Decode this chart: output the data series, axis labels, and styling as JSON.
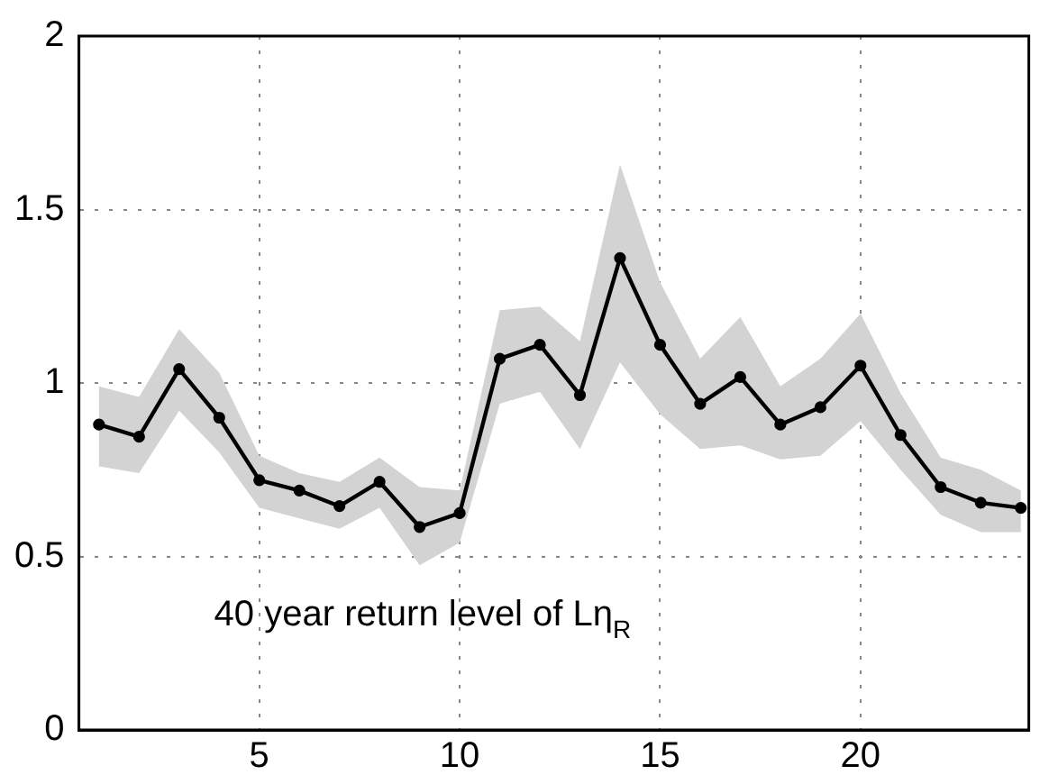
{
  "chart_data": {
    "type": "line",
    "x": [
      1,
      2,
      3,
      4,
      5,
      6,
      7,
      8,
      9,
      10,
      11,
      12,
      13,
      14,
      15,
      16,
      17,
      18,
      19,
      20,
      21,
      22,
      23,
      24
    ],
    "series": [
      {
        "color": "#000000",
        "values": [
          0.88,
          0.845,
          1.04,
          0.9,
          0.72,
          0.69,
          0.645,
          0.715,
          0.585,
          0.625,
          1.07,
          1.11,
          0.965,
          1.36,
          1.11,
          0.94,
          1.017,
          0.88,
          0.93,
          1.05,
          0.85,
          0.7,
          0.655,
          0.64
        ],
        "upper": [
          0.99,
          0.96,
          1.155,
          1.03,
          0.79,
          0.74,
          0.715,
          0.785,
          0.7,
          0.69,
          1.21,
          1.22,
          1.12,
          1.63,
          1.29,
          1.07,
          1.19,
          0.99,
          1.07,
          1.2,
          0.97,
          0.785,
          0.75,
          0.69
        ],
        "lower": [
          0.76,
          0.74,
          0.92,
          0.8,
          0.64,
          0.61,
          0.58,
          0.64,
          0.475,
          0.54,
          0.94,
          0.975,
          0.81,
          1.06,
          0.91,
          0.81,
          0.82,
          0.78,
          0.79,
          0.89,
          0.75,
          0.62,
          0.57,
          0.57
        ]
      }
    ],
    "xlim": [
      0.5,
      24.2
    ],
    "xticks": [
      5,
      10,
      15,
      20
    ],
    "ylim": [
      0,
      2
    ],
    "yticks": [
      0,
      0.5,
      1,
      1.5,
      2
    ],
    "grid": true,
    "marker": "circle",
    "line_style": "solid",
    "legend": false,
    "annotations": [
      "40 year return level of Lη$_{R}$"
    ]
  }
}
